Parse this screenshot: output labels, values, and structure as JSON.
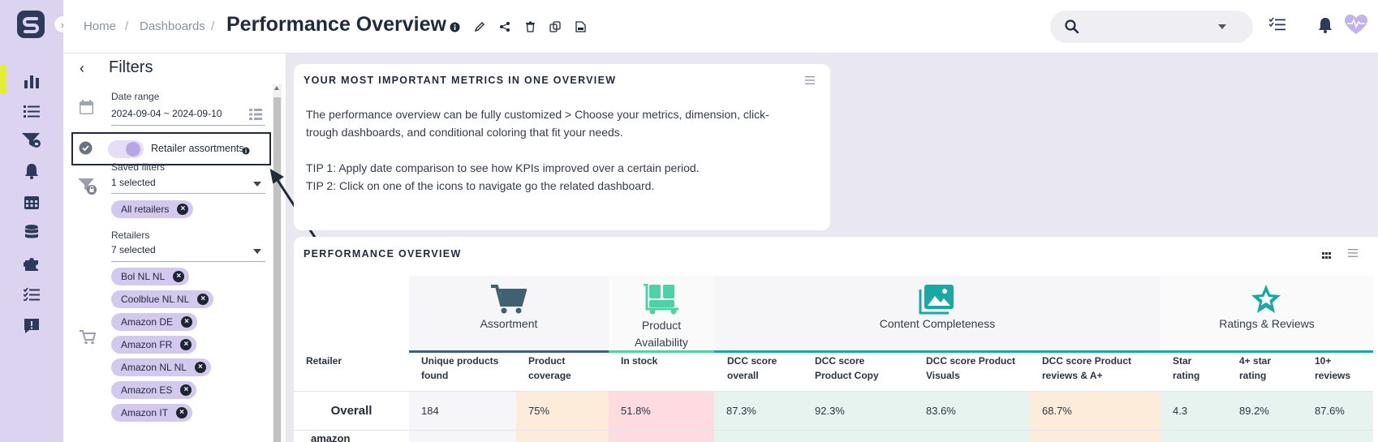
{
  "header": {
    "breadcrumb": [
      "Home",
      "Dashboards"
    ],
    "title": "Performance Overview"
  },
  "filters": {
    "title": "Filters",
    "date_range": {
      "label": "Date range",
      "value": "2024-09-04 ~ 2024-09-10"
    },
    "retailer_assortments": {
      "label": "Retailer assortments",
      "enabled": true
    },
    "saved_filters": {
      "label": "Saved filters",
      "value": "1 selected",
      "chips": [
        "All retailers"
      ]
    },
    "retailers": {
      "label": "Retailers",
      "value": "7 selected",
      "chips": [
        "Bol NL NL",
        "Coolblue NL NL",
        "Amazon DE",
        "Amazon FR",
        "Amazon NL NL",
        "Amazon ES",
        "Amazon IT"
      ]
    }
  },
  "info_card": {
    "title": "YOUR MOST IMPORTANT METRICS IN ONE OVERVIEW",
    "lines": [
      "The performance overview can be fully customized > Choose your metrics, dimension, click-",
      "trough dashboards, and conditional coloring that fit your needs.",
      "TIP 1: Apply date comparison to see how KPIs improved over a certain period.",
      "TIP 2: Click on one of the icons to navigate go the related dashboard."
    ]
  },
  "performance": {
    "title": "PERFORMANCE OVERVIEW",
    "groups": [
      {
        "label": "Assortment",
        "icon": "cart-icon",
        "color": "#3f6273"
      },
      {
        "label": "Product Availability",
        "icon": "trolley-icon",
        "color": "#4fd1a8"
      },
      {
        "label": "Content Completeness",
        "icon": "image-icon",
        "color": "#19a8a3"
      },
      {
        "label": "Ratings & Reviews",
        "icon": "star-icon",
        "color": "#19a8a3"
      }
    ],
    "retailer_header": "Retailer",
    "columns": [
      [
        "Unique products",
        "found"
      ],
      [
        "Product",
        "coverage"
      ],
      [
        "In stock"
      ],
      [
        "DCC score",
        "overall"
      ],
      [
        "DCC score",
        "Product Copy"
      ],
      [
        "DCC score Product",
        "Visuals"
      ],
      [
        "DCC score Product",
        "reviews & A+"
      ],
      [
        "Star",
        "rating"
      ],
      [
        "4+ star",
        "rating"
      ],
      [
        "10+",
        "reviews"
      ]
    ],
    "overall_label": "Overall",
    "overall_values": [
      "184",
      "75%",
      "51.8%",
      "87.3%",
      "92.3%",
      "83.6%",
      "68.7%",
      "4.3",
      "89.2%",
      "87.6%"
    ],
    "next_row_label": "amazon",
    "colors": {
      "neutral": "#f6f6f8",
      "warning": "#fdecd9",
      "danger": "#fddbe0",
      "good": "#e6f3ee"
    }
  }
}
